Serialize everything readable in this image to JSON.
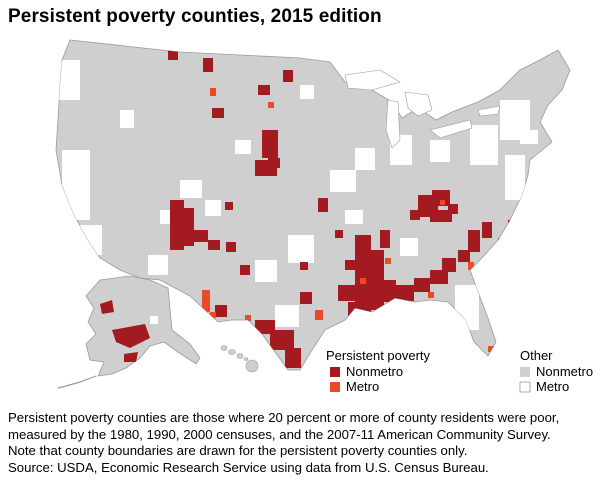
{
  "title": "Persistent poverty counties, 2015 edition",
  "legend": {
    "persistent_heading": "Persistent poverty",
    "other_heading": "Other",
    "items": [
      {
        "label": "Nonmetro",
        "color": "#a31a21",
        "group": "persistent"
      },
      {
        "label": "Metro",
        "color": "#ea4a25",
        "group": "persistent"
      },
      {
        "label": "Nonmetro",
        "color": "#cfcfcf",
        "group": "other"
      },
      {
        "label": "Metro",
        "color": "#ffffff",
        "group": "other"
      }
    ]
  },
  "colors": {
    "persistent_nonmetro": "#a31a21",
    "persistent_metro": "#ea4a25",
    "other_nonmetro": "#cfcfcf",
    "other_metro": "#ffffff",
    "boundary": "#ffffff"
  },
  "notes": {
    "definition": "Persistent poverty counties are those where 20 percent or more of county residents were poor, measured by the 1980, 1990, 2000 censuses, and the 2007-11 American Community Survey.",
    "boundary_note": "Note that county boundaries are drawn for the persistent poverty counties only.",
    "source": "Source: USDA, Economic Research Service using data from U.S. Census Bureau."
  }
}
